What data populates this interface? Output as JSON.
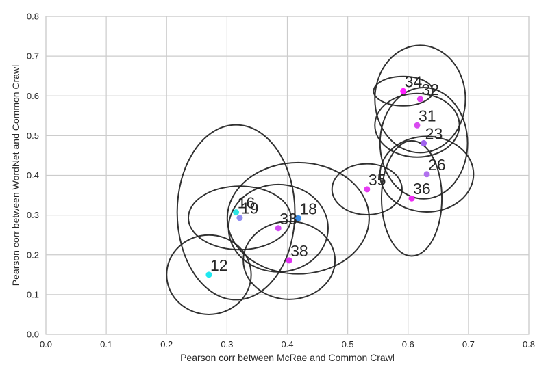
{
  "chart_data": {
    "type": "scatter",
    "xlabel": "Pearson corr between McRae and Common Crawl",
    "ylabel": "Pearson corr between WordNet and Common Crawl",
    "xlim": [
      0.0,
      0.8
    ],
    "ylim": [
      0.0,
      0.8
    ],
    "xticks": [
      "0.0",
      "0.1",
      "0.2",
      "0.3",
      "0.4",
      "0.5",
      "0.6",
      "0.7",
      "0.8"
    ],
    "yticks": [
      "0.0",
      "0.1",
      "0.2",
      "0.3",
      "0.4",
      "0.5",
      "0.6",
      "0.7",
      "0.8"
    ],
    "grid": true,
    "points": [
      {
        "label": "12",
        "x": 0.27,
        "y": 0.15,
        "color": "#1fe8f0",
        "ellipse_w": 0.14,
        "ellipse_h": 0.2
      },
      {
        "label": "16",
        "x": 0.315,
        "y": 0.307,
        "color": "#2ee6e6",
        "ellipse_w": 0.195,
        "ellipse_h": 0.44
      },
      {
        "label": "19",
        "x": 0.321,
        "y": 0.293,
        "color": "#8f8cf2",
        "ellipse_w": 0.17,
        "ellipse_h": 0.16
      },
      {
        "label": "18",
        "x": 0.418,
        "y": 0.292,
        "color": "#3a8fe8",
        "ellipse_w": 0.235,
        "ellipse_h": 0.28
      },
      {
        "label": "33",
        "x": 0.385,
        "y": 0.267,
        "color": "#d24cf2",
        "ellipse_w": 0.165,
        "ellipse_h": 0.22
      },
      {
        "label": "38",
        "x": 0.403,
        "y": 0.186,
        "color": "#e030f0",
        "ellipse_w": 0.152,
        "ellipse_h": 0.196
      },
      {
        "label": "35",
        "x": 0.532,
        "y": 0.365,
        "color": "#e63cf2",
        "ellipse_w": 0.116,
        "ellipse_h": 0.128
      },
      {
        "label": "36",
        "x": 0.606,
        "y": 0.342,
        "color": "#ee2cf4",
        "ellipse_w": 0.1,
        "ellipse_h": 0.29
      },
      {
        "label": "26",
        "x": 0.631,
        "y": 0.403,
        "color": "#b070ee",
        "ellipse_w": 0.155,
        "ellipse_h": 0.19
      },
      {
        "label": "23",
        "x": 0.626,
        "y": 0.481,
        "color": "#a062ee",
        "ellipse_w": 0.145,
        "ellipse_h": 0.28
      },
      {
        "label": "31",
        "x": 0.615,
        "y": 0.526,
        "color": "#d84af0",
        "ellipse_w": 0.14,
        "ellipse_h": 0.16
      },
      {
        "label": "32",
        "x": 0.62,
        "y": 0.592,
        "color": "#e43af2",
        "ellipse_w": 0.15,
        "ellipse_h": 0.27
      },
      {
        "label": "34",
        "x": 0.592,
        "y": 0.612,
        "color": "#ff22ff",
        "ellipse_w": 0.098,
        "ellipse_h": 0.074
      }
    ]
  }
}
